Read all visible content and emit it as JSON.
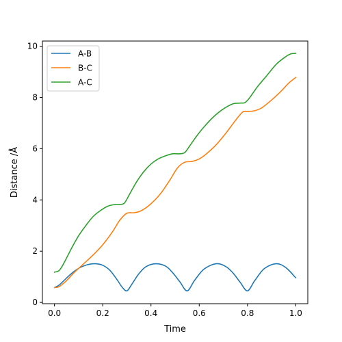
{
  "chart_data": {
    "type": "line",
    "xlabel": "Time",
    "ylabel": "Distance /Å",
    "xlim": [
      -0.05,
      1.05
    ],
    "ylim": [
      -0.05,
      10.2
    ],
    "xticks": [
      0.0,
      0.2,
      0.4,
      0.6,
      0.8,
      1.0
    ],
    "xtick_labels": [
      "0.0",
      "0.2",
      "0.4",
      "0.6",
      "0.8",
      "1.0"
    ],
    "yticks": [
      0,
      2,
      4,
      6,
      8,
      10
    ],
    "ytick_labels": [
      "0",
      "2",
      "4",
      "6",
      "8",
      "10"
    ],
    "grid": false,
    "legend_position": "top-left",
    "series": [
      {
        "name": "A-B",
        "color": "#1f77b4",
        "x": [
          0.0,
          0.02,
          0.05,
          0.08,
          0.11,
          0.14,
          0.17,
          0.2,
          0.23,
          0.26,
          0.28,
          0.3,
          0.32,
          0.35,
          0.38,
          0.42,
          0.46,
          0.49,
          0.52,
          0.55,
          0.58,
          0.62,
          0.67,
          0.71,
          0.74,
          0.77,
          0.8,
          0.83,
          0.87,
          0.92,
          0.96,
          1.0
        ],
        "y": [
          0.58,
          0.68,
          0.95,
          1.2,
          1.38,
          1.48,
          1.51,
          1.45,
          1.25,
          0.88,
          0.6,
          0.45,
          0.7,
          1.12,
          1.4,
          1.51,
          1.42,
          1.16,
          0.8,
          0.45,
          0.85,
          1.3,
          1.51,
          1.4,
          1.15,
          0.78,
          0.45,
          0.85,
          1.32,
          1.51,
          1.35,
          0.96
        ]
      },
      {
        "name": "B-C",
        "color": "#ff7f0e",
        "x": [
          0.0,
          0.02,
          0.05,
          0.08,
          0.12,
          0.16,
          0.2,
          0.24,
          0.27,
          0.3,
          0.33,
          0.36,
          0.4,
          0.44,
          0.48,
          0.51,
          0.54,
          0.57,
          0.6,
          0.63,
          0.67,
          0.71,
          0.75,
          0.78,
          0.8,
          0.83,
          0.86,
          0.9,
          0.94,
          0.97,
          1.0
        ],
        "y": [
          0.58,
          0.62,
          0.85,
          1.15,
          1.5,
          1.85,
          2.25,
          2.75,
          3.2,
          3.48,
          3.5,
          3.58,
          3.85,
          4.25,
          4.8,
          5.25,
          5.47,
          5.5,
          5.6,
          5.8,
          6.15,
          6.6,
          7.1,
          7.43,
          7.45,
          7.48,
          7.6,
          7.9,
          8.25,
          8.55,
          8.78
        ]
      },
      {
        "name": "A-C",
        "color": "#2ca02c",
        "x": [
          0.0,
          0.02,
          0.04,
          0.07,
          0.1,
          0.13,
          0.16,
          0.19,
          0.22,
          0.25,
          0.27,
          0.29,
          0.31,
          0.34,
          0.37,
          0.4,
          0.43,
          0.46,
          0.49,
          0.52,
          0.54,
          0.56,
          0.59,
          0.62,
          0.66,
          0.7,
          0.74,
          0.77,
          0.79,
          0.81,
          0.84,
          0.88,
          0.92,
          0.96,
          0.98,
          1.0
        ],
        "y": [
          1.18,
          1.25,
          1.55,
          2.1,
          2.6,
          3.0,
          3.35,
          3.58,
          3.75,
          3.82,
          3.82,
          3.88,
          4.2,
          4.7,
          5.1,
          5.4,
          5.6,
          5.72,
          5.8,
          5.8,
          5.85,
          6.1,
          6.5,
          6.85,
          7.25,
          7.55,
          7.75,
          7.78,
          7.8,
          8.0,
          8.4,
          8.85,
          9.3,
          9.6,
          9.7,
          9.72
        ]
      }
    ]
  }
}
